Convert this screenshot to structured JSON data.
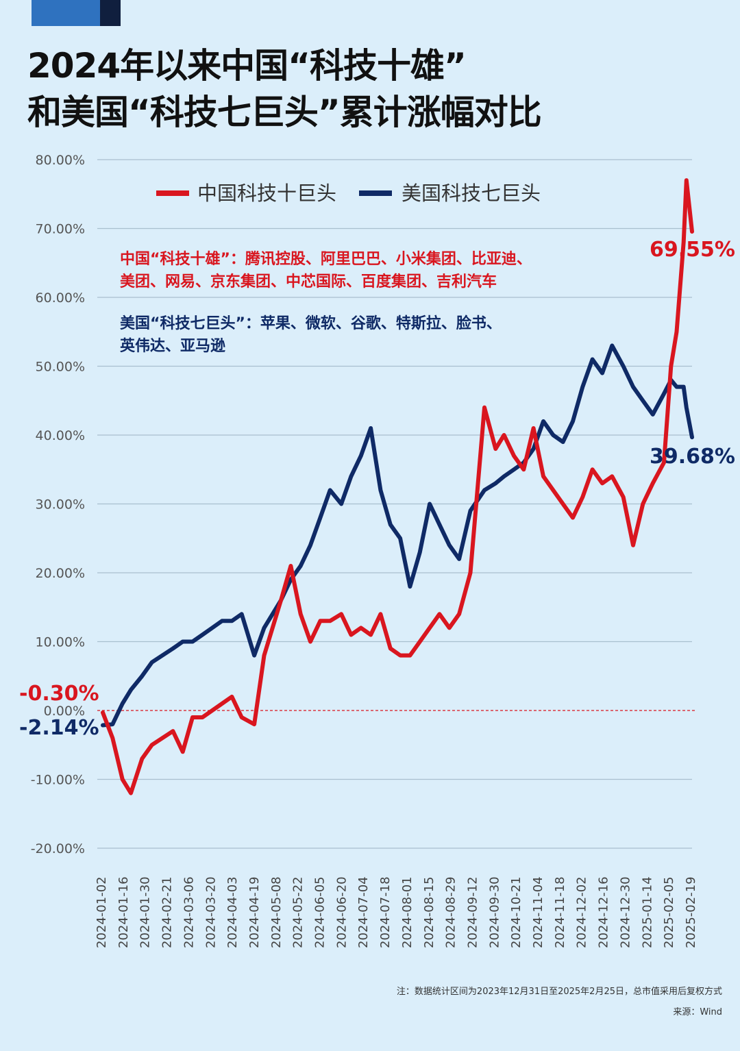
{
  "title": {
    "line1": "2024年以来中国“科技十雄”",
    "line2": "和美国“科技七巨头”累计涨幅对比"
  },
  "legend": {
    "china": "中国科技十巨头",
    "us": "美国科技七巨头"
  },
  "composition": {
    "china_line1": "中国“科技十雄”：腾讯控股、阿里巴巴、小米集团、比亚迪、",
    "china_line2": "美团、网易、京东集团、中芯国际、百度集团、吉利汽车",
    "us_line1": "美国“科技七巨头”：苹果、微软、谷歌、特斯拉、脸书、",
    "us_line2": "英伟达、亚马逊"
  },
  "annotations": {
    "china_start": "-0.30%",
    "us_start": "-2.14%",
    "china_end": "69.55%",
    "us_end": "39.68%"
  },
  "note": "注：数据统计区间为2023年12月31日至2025年2月25日，总市值采用后复权方式",
  "source": "来源：Wind",
  "colors": {
    "china": "#d9161f",
    "us": "#0f2a66",
    "background": "#dbeefa",
    "grid": "#a9bfcf",
    "title": "#111111"
  },
  "chart_data": {
    "type": "line",
    "title": "",
    "xlabel": "",
    "ylabel": "",
    "ylim": [
      -20,
      80
    ],
    "y_ticks": [
      "80.00%",
      "70.00%",
      "60.00%",
      "50.00%",
      "40.00%",
      "30.00%",
      "20.00%",
      "10.00%",
      "0.00%",
      "-10.00%",
      "-20.00%"
    ],
    "y_tick_values": [
      80,
      70,
      60,
      50,
      40,
      30,
      20,
      10,
      0,
      -10,
      -20
    ],
    "x_ticks": [
      "2024-01-02",
      "2024-01-16",
      "2024-01-30",
      "2024-02-21",
      "2024-03-06",
      "2024-03-20",
      "2024-04-03",
      "2024-04-19",
      "2024-05-08",
      "2024-05-22",
      "2024-06-05",
      "2024-06-20",
      "2024-07-04",
      "2024-07-18",
      "2024-08-01",
      "2024-08-15",
      "2024-08-29",
      "2024-09-12",
      "2024-09-30",
      "2024-10-21",
      "2024-11-04",
      "2024-11-18",
      "2024-12-02",
      "2024-12-16",
      "2024-12-30",
      "2025-01-14",
      "2025-02-05",
      "2025-02-19"
    ],
    "grid": true,
    "legend_position": "top",
    "reference_line": 0,
    "series": [
      {
        "name": "中国科技十巨头",
        "x": [
          "2024-01-02",
          "2024-01-09",
          "2024-01-16",
          "2024-01-22",
          "2024-01-30",
          "2024-02-06",
          "2024-02-21",
          "2024-02-28",
          "2024-03-06",
          "2024-03-13",
          "2024-03-20",
          "2024-03-27",
          "2024-04-03",
          "2024-04-10",
          "2024-04-19",
          "2024-04-26",
          "2024-05-08",
          "2024-05-15",
          "2024-05-22",
          "2024-05-29",
          "2024-06-05",
          "2024-06-12",
          "2024-06-20",
          "2024-06-27",
          "2024-07-04",
          "2024-07-11",
          "2024-07-18",
          "2024-07-25",
          "2024-08-01",
          "2024-08-08",
          "2024-08-15",
          "2024-08-22",
          "2024-08-29",
          "2024-09-05",
          "2024-09-12",
          "2024-09-20",
          "2024-09-30",
          "2024-10-08",
          "2024-10-14",
          "2024-10-21",
          "2024-10-28",
          "2024-11-04",
          "2024-11-11",
          "2024-11-18",
          "2024-11-25",
          "2024-12-02",
          "2024-12-09",
          "2024-12-16",
          "2024-12-23",
          "2024-12-30",
          "2025-01-07",
          "2025-01-14",
          "2025-01-21",
          "2025-01-28",
          "2025-02-05",
          "2025-02-10",
          "2025-02-14",
          "2025-02-19",
          "2025-02-21",
          "2025-02-25"
        ],
        "values": [
          -0.3,
          -4,
          -10,
          -12,
          -7,
          -5,
          -3,
          -6,
          -1,
          -1,
          0,
          1,
          2,
          -1,
          -2,
          8,
          16,
          21,
          14,
          10,
          13,
          13,
          14,
          11,
          12,
          11,
          14,
          9,
          8,
          8,
          10,
          12,
          14,
          12,
          14,
          20,
          44,
          38,
          40,
          37,
          35,
          41,
          34,
          32,
          30,
          28,
          31,
          35,
          33,
          34,
          31,
          24,
          30,
          33,
          36,
          50,
          55,
          68,
          77,
          69.55
        ]
      },
      {
        "name": "美国科技七巨头",
        "x": [
          "2024-01-02",
          "2024-01-09",
          "2024-01-16",
          "2024-01-22",
          "2024-01-30",
          "2024-02-06",
          "2024-02-21",
          "2024-02-28",
          "2024-03-06",
          "2024-03-13",
          "2024-03-20",
          "2024-03-27",
          "2024-04-03",
          "2024-04-10",
          "2024-04-19",
          "2024-04-26",
          "2024-05-08",
          "2024-05-15",
          "2024-05-22",
          "2024-05-29",
          "2024-06-05",
          "2024-06-12",
          "2024-06-20",
          "2024-06-27",
          "2024-07-04",
          "2024-07-11",
          "2024-07-18",
          "2024-07-25",
          "2024-08-01",
          "2024-08-08",
          "2024-08-15",
          "2024-08-22",
          "2024-08-29",
          "2024-09-05",
          "2024-09-12",
          "2024-09-20",
          "2024-09-30",
          "2024-10-08",
          "2024-10-14",
          "2024-10-21",
          "2024-10-28",
          "2024-11-04",
          "2024-11-11",
          "2024-11-18",
          "2024-11-25",
          "2024-12-02",
          "2024-12-09",
          "2024-12-16",
          "2024-12-23",
          "2024-12-30",
          "2025-01-07",
          "2025-01-14",
          "2025-01-21",
          "2025-01-28",
          "2025-02-05",
          "2025-02-10",
          "2025-02-14",
          "2025-02-19",
          "2025-02-21",
          "2025-02-25"
        ],
        "values": [
          -2.14,
          -2,
          1,
          3,
          5,
          7,
          9,
          10,
          10,
          11,
          12,
          13,
          13,
          14,
          8,
          12,
          16,
          19,
          21,
          24,
          28,
          32,
          30,
          34,
          37,
          41,
          32,
          27,
          25,
          18,
          23,
          30,
          27,
          24,
          22,
          29,
          32,
          33,
          34,
          35,
          36,
          38,
          42,
          40,
          39,
          42,
          47,
          51,
          49,
          53,
          50,
          47,
          45,
          43,
          46,
          48,
          47,
          47,
          44,
          39.68
        ]
      }
    ]
  }
}
